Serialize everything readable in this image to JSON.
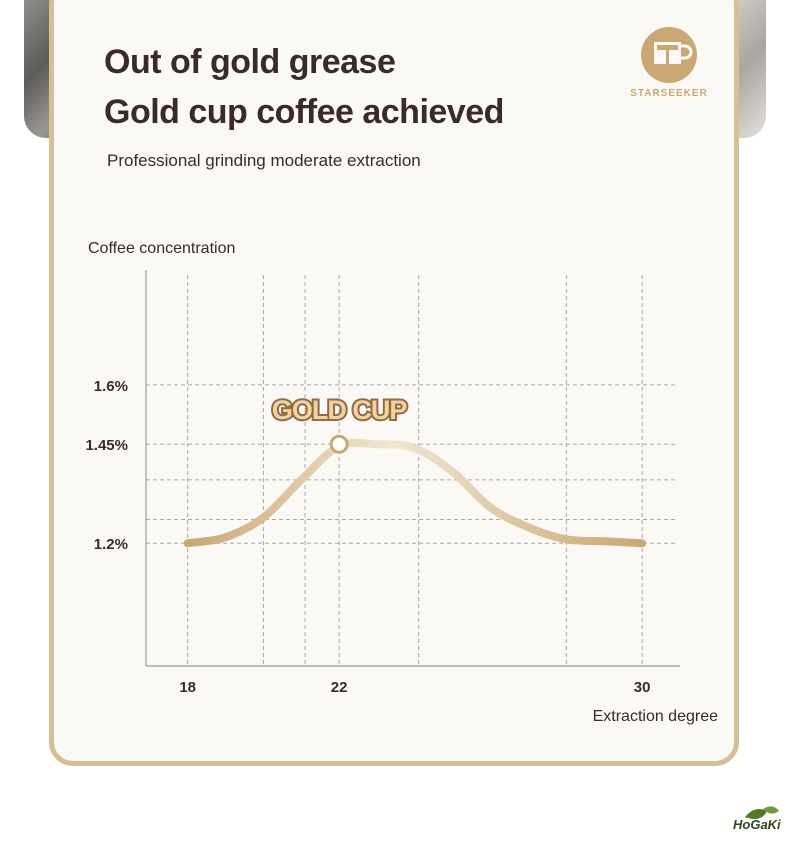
{
  "header": {
    "title_line1": "Out of gold grease",
    "title_line2": "Gold cup coffee achieved",
    "subtitle": "Professional grinding moderate extraction"
  },
  "brand": {
    "name": "STARSEEKER",
    "color": "#c9a874"
  },
  "footer": {
    "logo_text": "HoGaKi"
  },
  "colors": {
    "curve": "#d8c49a",
    "frame": "#d5bf95",
    "title": "#3a2b26",
    "label_fill": "#f3d29d"
  },
  "chart_data": {
    "type": "line",
    "ylabel": "Coffee concentration",
    "xlabel": "Extraction degree",
    "x_ticks": [
      18,
      22,
      30
    ],
    "y_ticks": [
      "1.2%",
      "1.45%",
      "1.6%"
    ],
    "y_tick_values": [
      1.2,
      1.45,
      1.6
    ],
    "xlim": [
      16.9,
      31
    ],
    "ylim": [
      0.89,
      1.89
    ],
    "grid": true,
    "series": [
      {
        "x": [
          18,
          19,
          20,
          21,
          22,
          23,
          24,
          25,
          26,
          27,
          28,
          29,
          30
        ],
        "y": [
          1.2,
          1.215,
          1.265,
          1.36,
          1.445,
          1.45,
          1.44,
          1.38,
          1.29,
          1.24,
          1.21,
          1.205,
          1.2
        ]
      }
    ],
    "annotations": [
      {
        "x": 22,
        "y": 1.45,
        "text": "GOLD CUP"
      }
    ]
  }
}
